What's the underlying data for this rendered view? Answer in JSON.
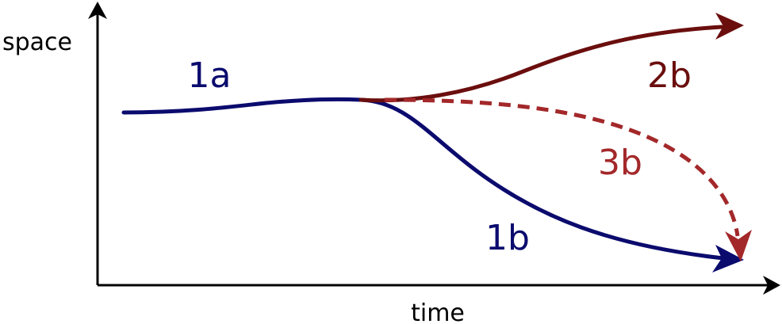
{
  "axes": {
    "y_label": "space",
    "x_label": "time"
  },
  "paths": [
    {
      "id": "1a",
      "label": "1a",
      "color": "#0b0b6e",
      "style": "solid"
    },
    {
      "id": "1b",
      "label": "1b",
      "color": "#0b0b6e",
      "style": "solid"
    },
    {
      "id": "2b",
      "label": "2b",
      "color": "#6b0e0e",
      "style": "solid"
    },
    {
      "id": "3b",
      "label": "3b",
      "color": "#a3282a",
      "style": "dashed"
    }
  ],
  "colors": {
    "axis": "#000000",
    "navy": "#0b0b6e",
    "dark_red": "#6b0e0e",
    "red": "#a3282a"
  }
}
